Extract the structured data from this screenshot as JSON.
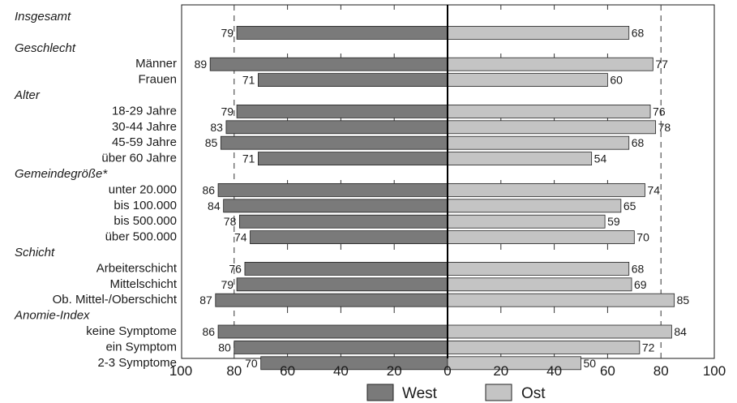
{
  "chart_data": {
    "type": "bar",
    "orientation": "horizontal-diverging",
    "series": [
      {
        "name": "West",
        "color": "#7a7a7a",
        "side": "left"
      },
      {
        "name": "Ost",
        "color": "#c4c4c4",
        "side": "right"
      }
    ],
    "xlim": [
      -100,
      100
    ],
    "x_ticks": [
      "100",
      "80",
      "60",
      "40",
      "20",
      "0",
      "20",
      "40",
      "60",
      "80",
      "100"
    ],
    "grid": "dashed vertical at 80",
    "legend": "bottom-center",
    "rows": [
      {
        "kind": "group",
        "label": "Insgesamt"
      },
      {
        "kind": "bar",
        "label": "",
        "west": 79,
        "ost": 68
      },
      {
        "kind": "group",
        "label": "Geschlecht"
      },
      {
        "kind": "bar",
        "label": "Männer",
        "west": 89,
        "ost": 77
      },
      {
        "kind": "bar",
        "label": "Frauen",
        "west": 71,
        "ost": 60
      },
      {
        "kind": "group",
        "label": "Alter"
      },
      {
        "kind": "bar",
        "label": "18-29 Jahre",
        "west": 79,
        "ost": 76
      },
      {
        "kind": "bar",
        "label": "30-44 Jahre",
        "west": 83,
        "ost": 78
      },
      {
        "kind": "bar",
        "label": "45-59 Jahre",
        "west": 85,
        "ost": 68
      },
      {
        "kind": "bar",
        "label": "über 60 Jahre",
        "west": 71,
        "ost": 54
      },
      {
        "kind": "group",
        "label": "Gemeindegröße*"
      },
      {
        "kind": "bar",
        "label": "unter 20.000",
        "west": 86,
        "ost": 74
      },
      {
        "kind": "bar",
        "label": "bis 100.000",
        "west": 84,
        "ost": 65
      },
      {
        "kind": "bar",
        "label": "bis 500.000",
        "west": 78,
        "ost": 59
      },
      {
        "kind": "bar",
        "label": "über 500.000",
        "west": 74,
        "ost": 70
      },
      {
        "kind": "group",
        "label": "Schicht"
      },
      {
        "kind": "bar",
        "label": "Arbeiterschicht",
        "west": 76,
        "ost": 68
      },
      {
        "kind": "bar",
        "label": "Mittelschicht",
        "west": 79,
        "ost": 69
      },
      {
        "kind": "bar",
        "label": "Ob. Mittel-/Oberschicht",
        "west": 87,
        "ost": 85
      },
      {
        "kind": "group",
        "label": "Anomie-Index"
      },
      {
        "kind": "bar",
        "label": "keine Symptome",
        "west": 86,
        "ost": 84
      },
      {
        "kind": "bar",
        "label": "ein Symptom",
        "west": 80,
        "ost": 72
      },
      {
        "kind": "bar",
        "label": "2-3 Symptome",
        "west": 70,
        "ost": 50
      }
    ]
  }
}
